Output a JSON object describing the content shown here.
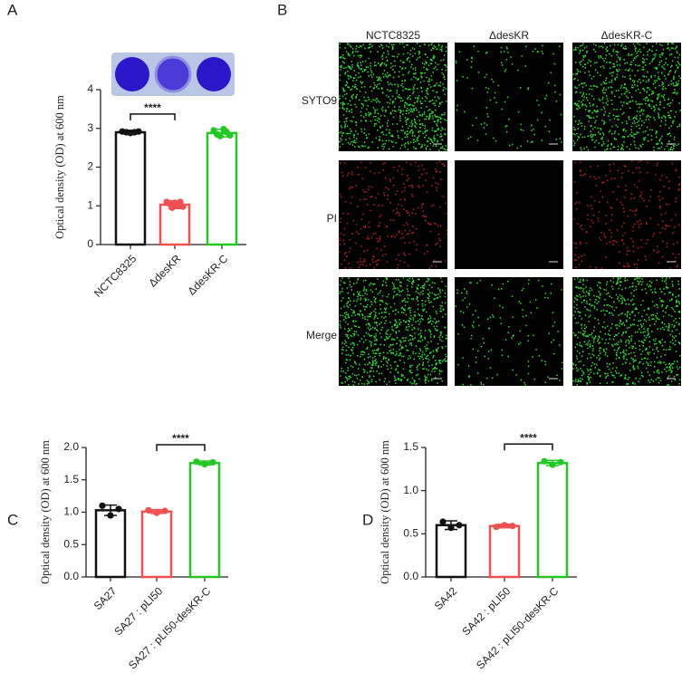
{
  "chart_data": [
    {
      "type": "bar",
      "panel_label": "A",
      "y_label": "Optical density (OD) at 600 nm",
      "categories": [
        "NCTC8325",
        "ΔdesKR",
        "ΔdesKR-C"
      ],
      "series": [
        {
          "colors": [
            "#111111",
            "#f0504f",
            "#22c922"
          ]
        }
      ],
      "values": [
        2.9,
        1.03,
        2.88
      ],
      "errors": [
        0.05,
        0.1,
        0.1
      ],
      "points": [
        [
          2.92,
          2.9,
          2.88,
          2.9,
          2.92
        ],
        [
          1.1,
          1.05,
          0.95,
          1.08,
          1.0,
          1.1,
          0.98
        ],
        [
          2.95,
          2.85,
          2.8,
          2.98,
          2.9,
          2.82
        ]
      ],
      "ylim": [
        0,
        4
      ],
      "yticks": [
        0,
        1,
        2,
        3,
        4
      ],
      "significance": {
        "label": "****",
        "between": [
          "NCTC8325",
          "ΔdesKR"
        ]
      }
    },
    {
      "type": "bar",
      "panel_label": "C",
      "y_label": "Optical density (OD) at 600 nm",
      "categories": [
        "SA27",
        "SA27 : pLI50",
        "SA27 : pLI50-desKR-C"
      ],
      "series": [
        {
          "colors": [
            "#111111",
            "#f0504f",
            "#22c922"
          ]
        }
      ],
      "values": [
        1.03,
        1.01,
        1.76
      ],
      "errors": [
        0.08,
        0.03,
        0.03
      ],
      "points": [
        [
          1.1,
          0.95,
          1.05
        ],
        [
          1.03,
          0.99,
          1.02
        ],
        [
          1.78,
          1.74,
          1.77
        ]
      ],
      "ylim": [
        0,
        2
      ],
      "yticks": [
        {
          "value": 0,
          "label": "0.0"
        },
        0.5,
        {
          "value": 1,
          "label": "1.0"
        },
        1.5,
        {
          "value": 2,
          "label": "2.0"
        }
      ],
      "significance": {
        "label": "****",
        "between": [
          "SA27 : pLI50",
          "SA27 : pLI50-desKR-C"
        ]
      }
    },
    {
      "type": "bar",
      "panel_label": "D",
      "y_label": "Optical density (OD) at 600 nm",
      "categories": [
        "SA42",
        "SA42 : pLI50",
        "SA42 : pLI50-desKR-C"
      ],
      "series": [
        {
          "colors": [
            "#111111",
            "#f0504f",
            "#22c922"
          ]
        }
      ],
      "values": [
        0.6,
        0.59,
        1.32
      ],
      "errors": [
        0.05,
        0.02,
        0.03
      ],
      "points": [
        [
          0.64,
          0.57,
          0.6
        ],
        [
          0.58,
          0.6,
          0.59
        ],
        [
          1.34,
          1.3,
          1.33
        ]
      ],
      "ylim": [
        0,
        1.5
      ],
      "yticks": [
        {
          "value": 0,
          "label": "0.0"
        },
        0.5,
        {
          "value": 1,
          "label": "1.0"
        },
        1.5
      ],
      "significance": {
        "label": "****",
        "between": [
          "SA42 : pLI50",
          "SA42 : pLI50-desKR-C"
        ]
      }
    }
  ],
  "panel_b": {
    "panel_label": "B",
    "columns": [
      "NCTC8325",
      "ΔdesKR",
      "ΔdesKR-C"
    ],
    "rows": [
      "SYTO9",
      "PI",
      "Merge"
    ]
  }
}
